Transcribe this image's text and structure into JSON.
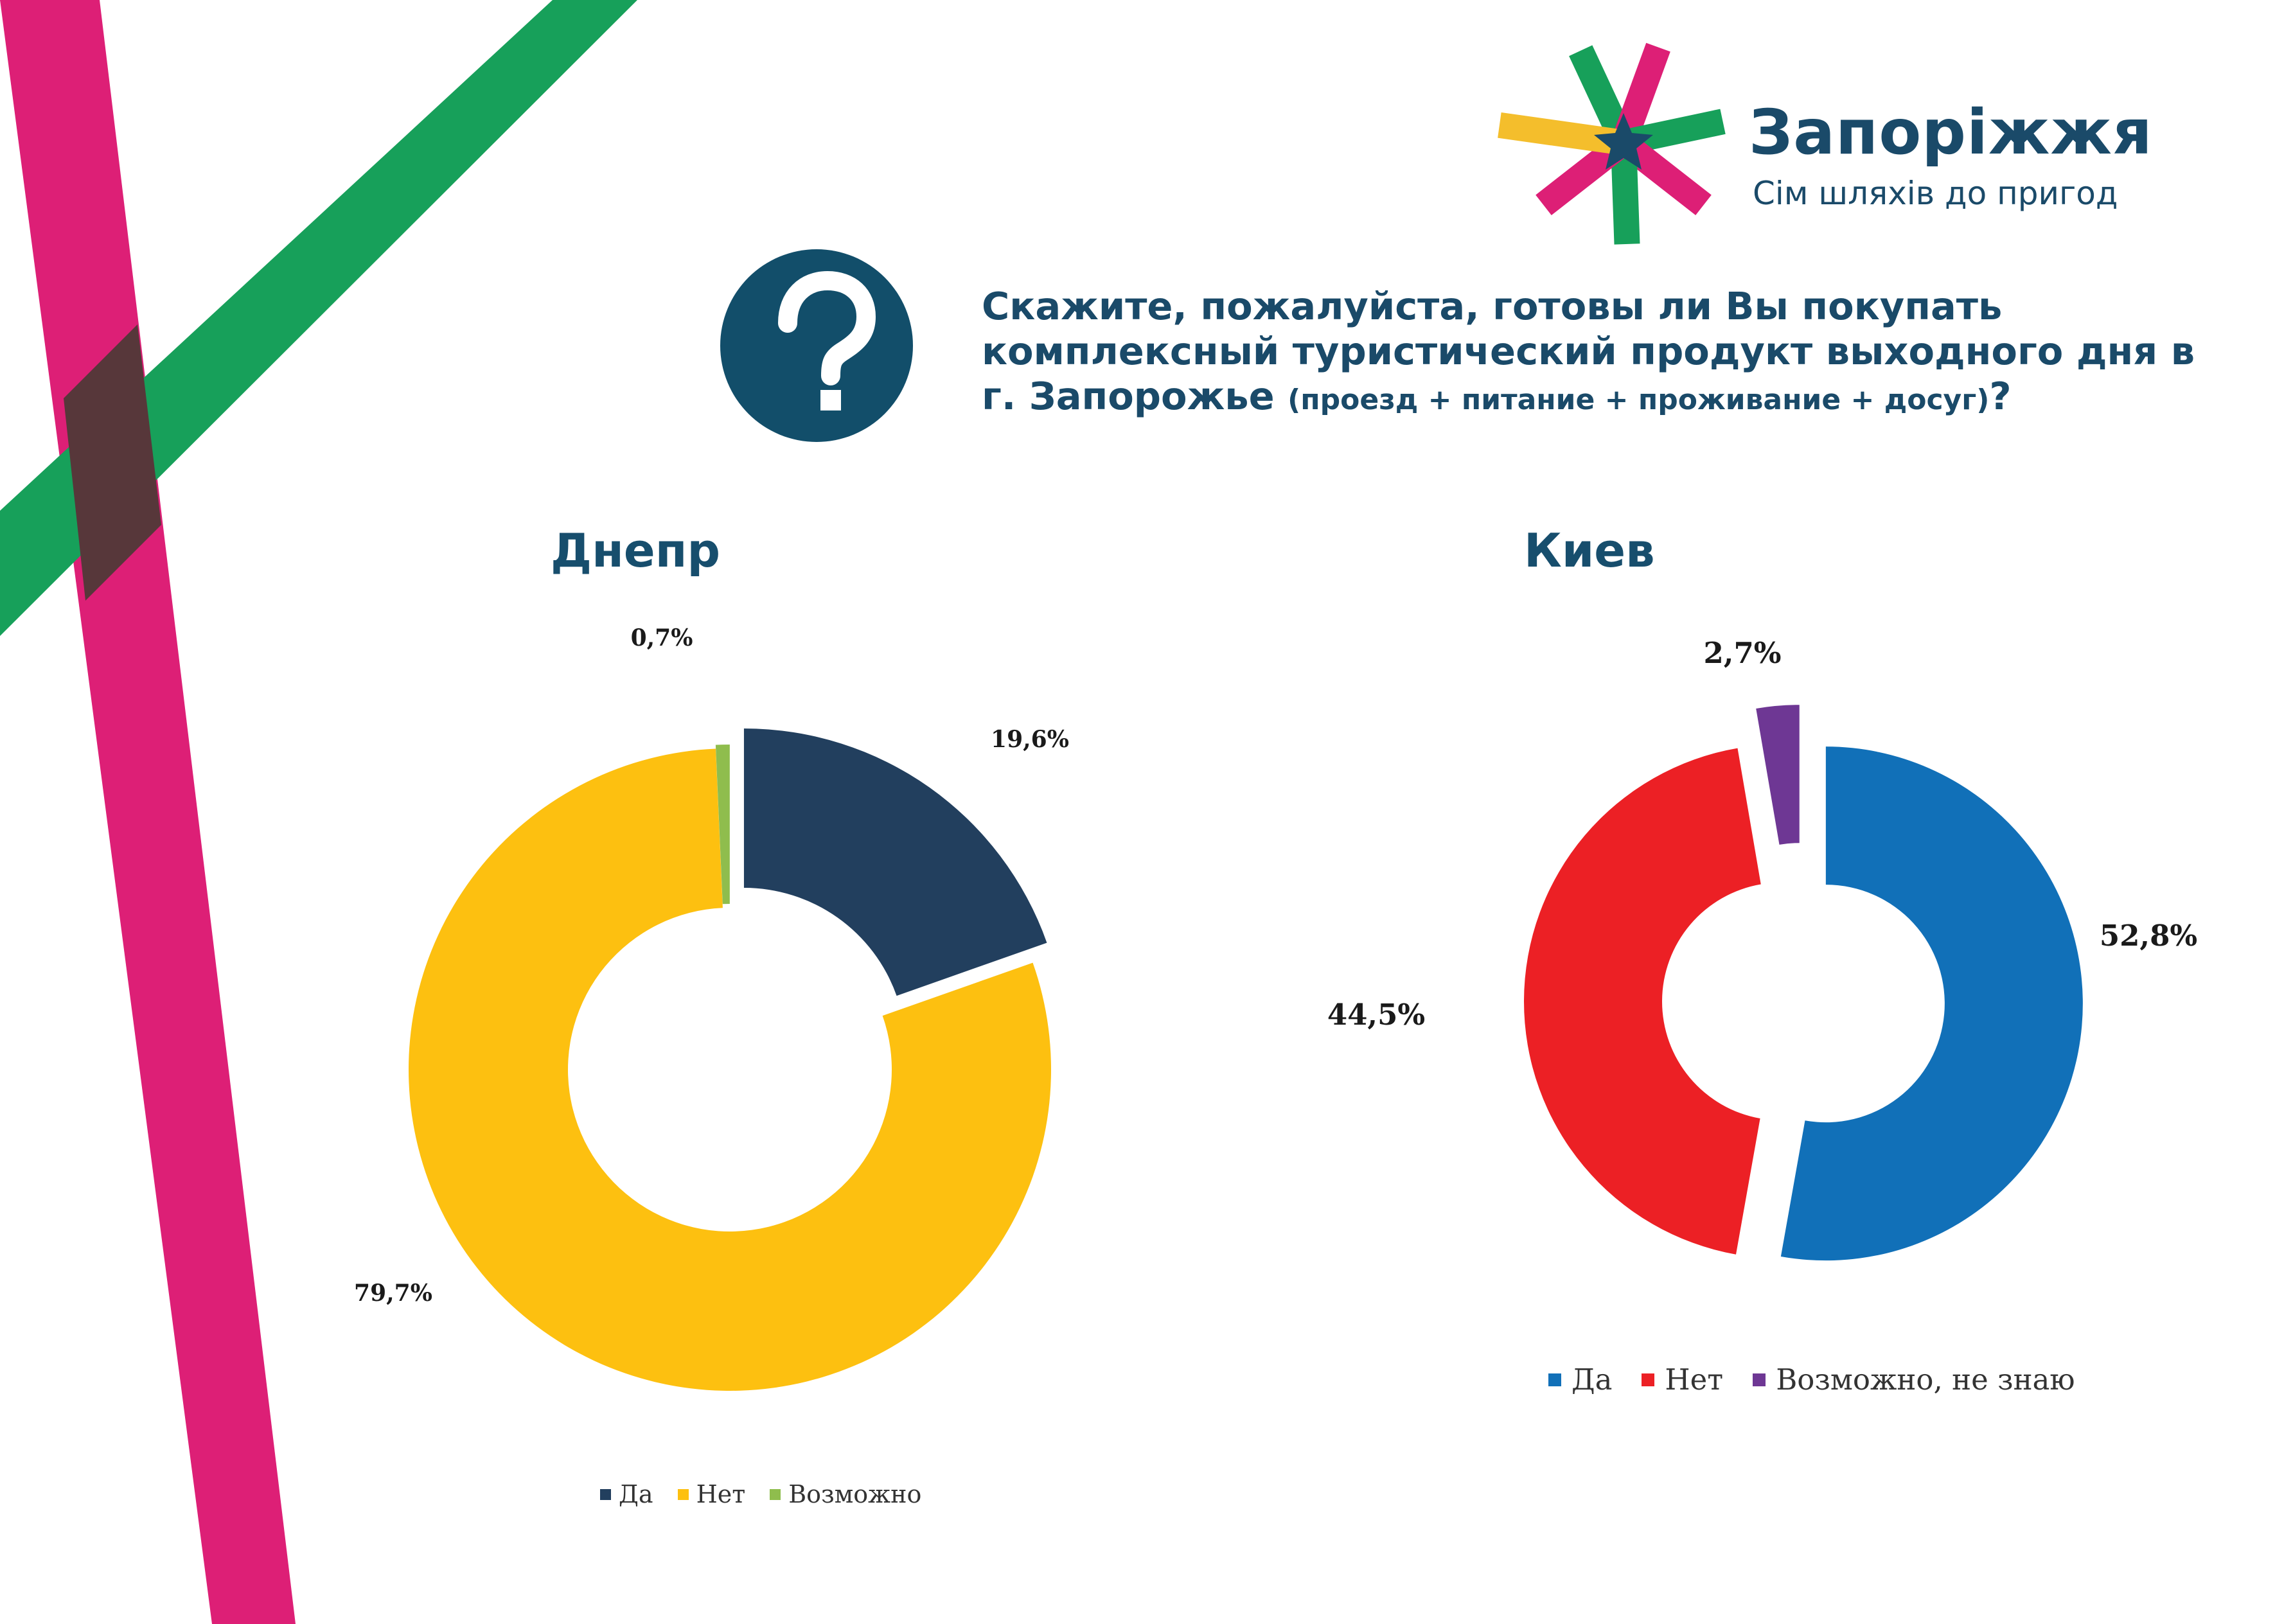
{
  "brand": {
    "name": "Запоріжжя",
    "tagline": "Сім шляхів до пригод"
  },
  "question": {
    "main": "Скажите, пожалуйста, готовы ли Вы покупать комплексный туристический продукт выходного дня в г. Запорожье ",
    "detail": "(проезд + питание + проживание + досуг)",
    "end": "?"
  },
  "chart_data": [
    {
      "type": "pie",
      "title": "Днепр",
      "categories": [
        "Да",
        "Нет",
        "Возможно"
      ],
      "values": [
        19.6,
        79.7,
        0.7
      ],
      "labels": [
        "19,6%",
        "79,7%",
        "0,7%"
      ],
      "colors": [
        "#223f5e",
        "#fdc010",
        "#8fbd4d"
      ],
      "legend": "bottom"
    },
    {
      "type": "pie",
      "title": "Киев",
      "categories": [
        "Да",
        "Нет",
        "Возможно, не знаю"
      ],
      "values": [
        52.8,
        44.5,
        2.7
      ],
      "labels": [
        "52,8%",
        "44,5%",
        "2,7%"
      ],
      "colors": [
        "#1170b8",
        "#ec2025",
        "#6e3794"
      ],
      "legend": "bottom"
    }
  ],
  "colors": {
    "pink_stripe": "#dd1f76",
    "green_stripe": "#17a05a",
    "brand_navy": "#1a4a69",
    "logo_yellow": "#f4be2c"
  },
  "icons": {
    "question": "question-mark-icon",
    "logo": "star-burst-logo-icon"
  }
}
